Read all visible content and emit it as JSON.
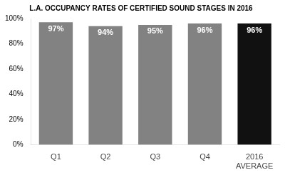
{
  "chart_data": {
    "type": "bar",
    "title": "L.A. OCCUPANCY RATES OF CERTIFIED SOUND STAGES IN 2016",
    "categories": [
      "Q1",
      "Q2",
      "Q3",
      "Q4",
      "2016\nAVERAGE"
    ],
    "values": [
      97,
      94,
      95,
      96,
      96
    ],
    "value_labels": [
      "97%",
      "94%",
      "95%",
      "96%",
      "96%"
    ],
    "data_labels": true,
    "colors": [
      "#828282",
      "#828282",
      "#828282",
      "#828282",
      "#111111"
    ],
    "ylim": [
      0,
      100
    ],
    "yticks": [
      {
        "value": 0,
        "label": "0%"
      },
      {
        "value": 20,
        "label": "20%"
      },
      {
        "value": 40,
        "label": "40%"
      },
      {
        "value": 60,
        "label": "60%"
      },
      {
        "value": 80,
        "label": "80%"
      },
      {
        "value": 100,
        "label": "100%"
      }
    ],
    "grid": false
  }
}
